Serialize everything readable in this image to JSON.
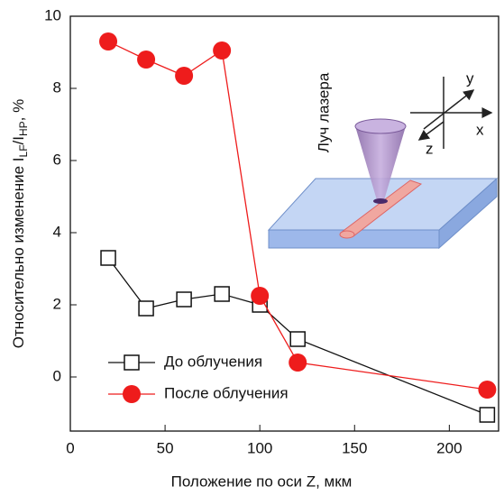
{
  "chart_data": {
    "type": "line",
    "x_label": "Положение по оси Z, мкм",
    "y_label": {
      "prefix": "Относительно изменение I",
      "sub1": "LF",
      "mid": "/I",
      "sub2": "HP",
      "suffix": ", %"
    },
    "x": [
      20,
      40,
      60,
      80,
      100,
      120,
      220
    ],
    "series": [
      {
        "name": "До облучения",
        "color": "#111111",
        "marker": "square",
        "values": [
          3.3,
          1.9,
          2.15,
          2.3,
          2.0,
          1.05,
          -1.05
        ]
      },
      {
        "name": "После облучения",
        "color": "#ee1c1c",
        "marker": "circle",
        "values": [
          9.3,
          8.8,
          8.35,
          9.05,
          2.25,
          0.4,
          -0.35
        ]
      }
    ],
    "xlim": [
      0,
      226
    ],
    "xticks": [
      0,
      50,
      100,
      150,
      200
    ],
    "ylim": [
      -1.5,
      10
    ],
    "yticks": [
      0,
      2,
      4,
      6,
      8,
      10
    ],
    "inset": {
      "label": "Луч лазера",
      "axis_x": "x",
      "axis_y": "y",
      "axis_z": "z"
    }
  }
}
